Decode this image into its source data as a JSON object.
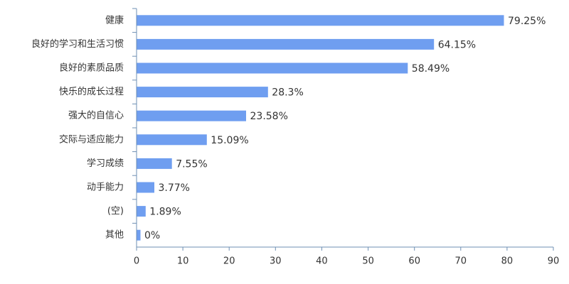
{
  "chart_data": {
    "type": "bar",
    "orientation": "horizontal",
    "title": "",
    "xlabel": "",
    "ylabel": "",
    "categories": [
      "健康",
      "良好的学习和生活习惯",
      "良好的素质品质",
      "快乐的成长过程",
      "强大的自信心",
      "交际与适应能力",
      "学习成绩",
      "动手能力",
      "(空)",
      "其他"
    ],
    "values": [
      79.25,
      64.15,
      58.49,
      28.3,
      23.58,
      15.09,
      7.55,
      3.77,
      1.89,
      0
    ],
    "value_labels": [
      "79.25%",
      "64.15%",
      "58.49%",
      "28.3%",
      "23.58%",
      "15.09%",
      "7.55%",
      "3.77%",
      "1.89%",
      "0%"
    ],
    "xlim": [
      0,
      90
    ],
    "xticks": [
      0,
      10,
      20,
      30,
      40,
      50,
      60,
      70,
      80,
      90
    ],
    "grid": false,
    "colors": {
      "bar": "#6f9ef0",
      "axis": "#6e8fb3",
      "text": "#333333"
    }
  }
}
